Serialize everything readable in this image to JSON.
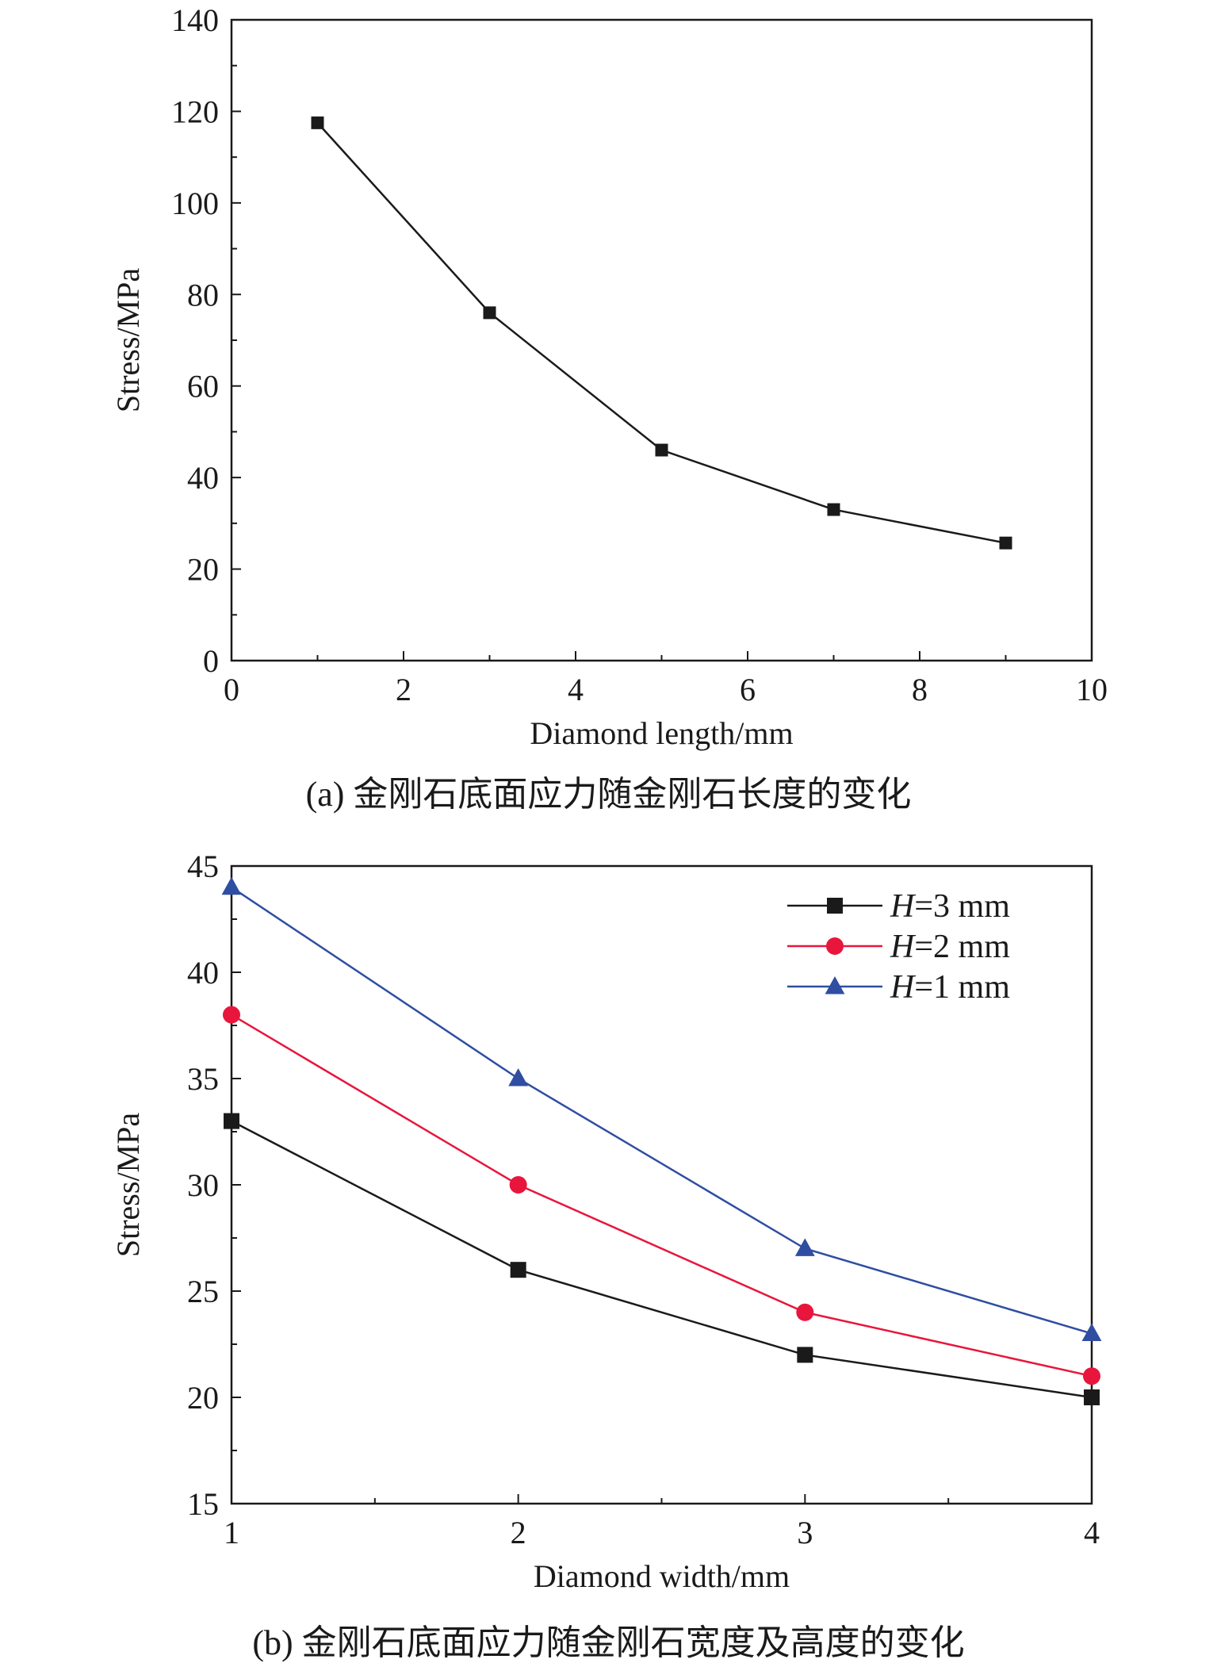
{
  "chart_data": [
    {
      "type": "line",
      "title": "",
      "xlabel": "Diamond length/mm",
      "ylabel": "Stress/MPa",
      "xlim": [
        0,
        10
      ],
      "ylim": [
        0,
        140
      ],
      "xticks": [
        0,
        2,
        4,
        6,
        8,
        10
      ],
      "yticks": [
        0,
        20,
        40,
        60,
        80,
        100,
        120,
        140
      ],
      "grid": false,
      "series": [
        {
          "x": [
            1,
            3,
            5,
            7,
            9
          ],
          "values": [
            117.5,
            76,
            46,
            33,
            25.7
          ],
          "color": "#1a1a1a",
          "marker": "square"
        }
      ],
      "caption": "(a) 金刚石底面应力随金刚石长度的变化"
    },
    {
      "type": "line",
      "title": "",
      "xlabel": "Diamond width/mm",
      "ylabel": "Stress/MPa",
      "xlim": [
        1,
        4
      ],
      "ylim": [
        15,
        45
      ],
      "xticks": [
        1,
        2,
        3,
        4
      ],
      "yticks": [
        15,
        20,
        25,
        30,
        35,
        40,
        45
      ],
      "grid": false,
      "legend_position": "top-right",
      "series": [
        {
          "name_var": "H",
          "name_rest": "=3 mm",
          "x": [
            1,
            2,
            3,
            4
          ],
          "values": [
            33,
            26,
            22,
            20
          ],
          "color": "#1a1a1a",
          "marker": "square"
        },
        {
          "name_var": "H",
          "name_rest": "=2 mm",
          "x": [
            1,
            2,
            3,
            4
          ],
          "values": [
            38,
            30,
            24,
            21
          ],
          "color": "#e8163c",
          "marker": "circle"
        },
        {
          "name_var": "H",
          "name_rest": "=1 mm",
          "x": [
            1,
            2,
            3,
            4
          ],
          "values": [
            44,
            35,
            27,
            23
          ],
          "color": "#2f4ea2",
          "marker": "triangle"
        }
      ],
      "caption": "(b) 金刚石底面应力随金刚石宽度及高度的变化"
    }
  ]
}
